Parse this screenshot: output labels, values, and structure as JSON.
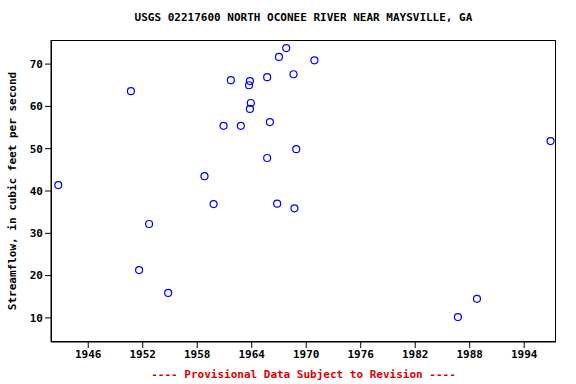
{
  "chart_data": {
    "type": "scatter",
    "title": "USGS 02217600 NORTH OCONEE RIVER NEAR MAYSVILLE, GA",
    "ylabel": "Streamflow, in cubic feet per second",
    "footer": "---- Provisional Data Subject to Revision ----",
    "x": [
      1942.7,
      1950.7,
      1951.6,
      1952.7,
      1954.8,
      1958.8,
      1959.8,
      1960.9,
      1961.7,
      1962.8,
      1963.7,
      1963.8,
      1963.9,
      1963.8,
      1965.7,
      1965.7,
      1966.0,
      1966.8,
      1967.0,
      1967.8,
      1968.6,
      1968.7,
      1968.9,
      1970.9,
      1986.7,
      1988.8,
      1996.9
    ],
    "values": [
      41.4,
      63.6,
      21.3,
      32.2,
      15.9,
      43.5,
      36.9,
      55.4,
      66.2,
      55.4,
      65.0,
      66.0,
      60.8,
      59.4,
      66.9,
      47.8,
      56.3,
      37.0,
      71.7,
      73.8,
      67.6,
      35.9,
      49.9,
      70.9,
      10.2,
      14.5,
      51.8
    ],
    "color": "#0000ff",
    "marker": "open_circle",
    "xlim": [
      1941.9,
      1997.5
    ],
    "ylim": [
      4.3,
      75.7
    ],
    "xticks": [
      1946,
      1952,
      1958,
      1964,
      1970,
      1976,
      1982,
      1988,
      1994
    ],
    "yticks": [
      10,
      20,
      30,
      40,
      50,
      60,
      70
    ],
    "grid": false
  }
}
